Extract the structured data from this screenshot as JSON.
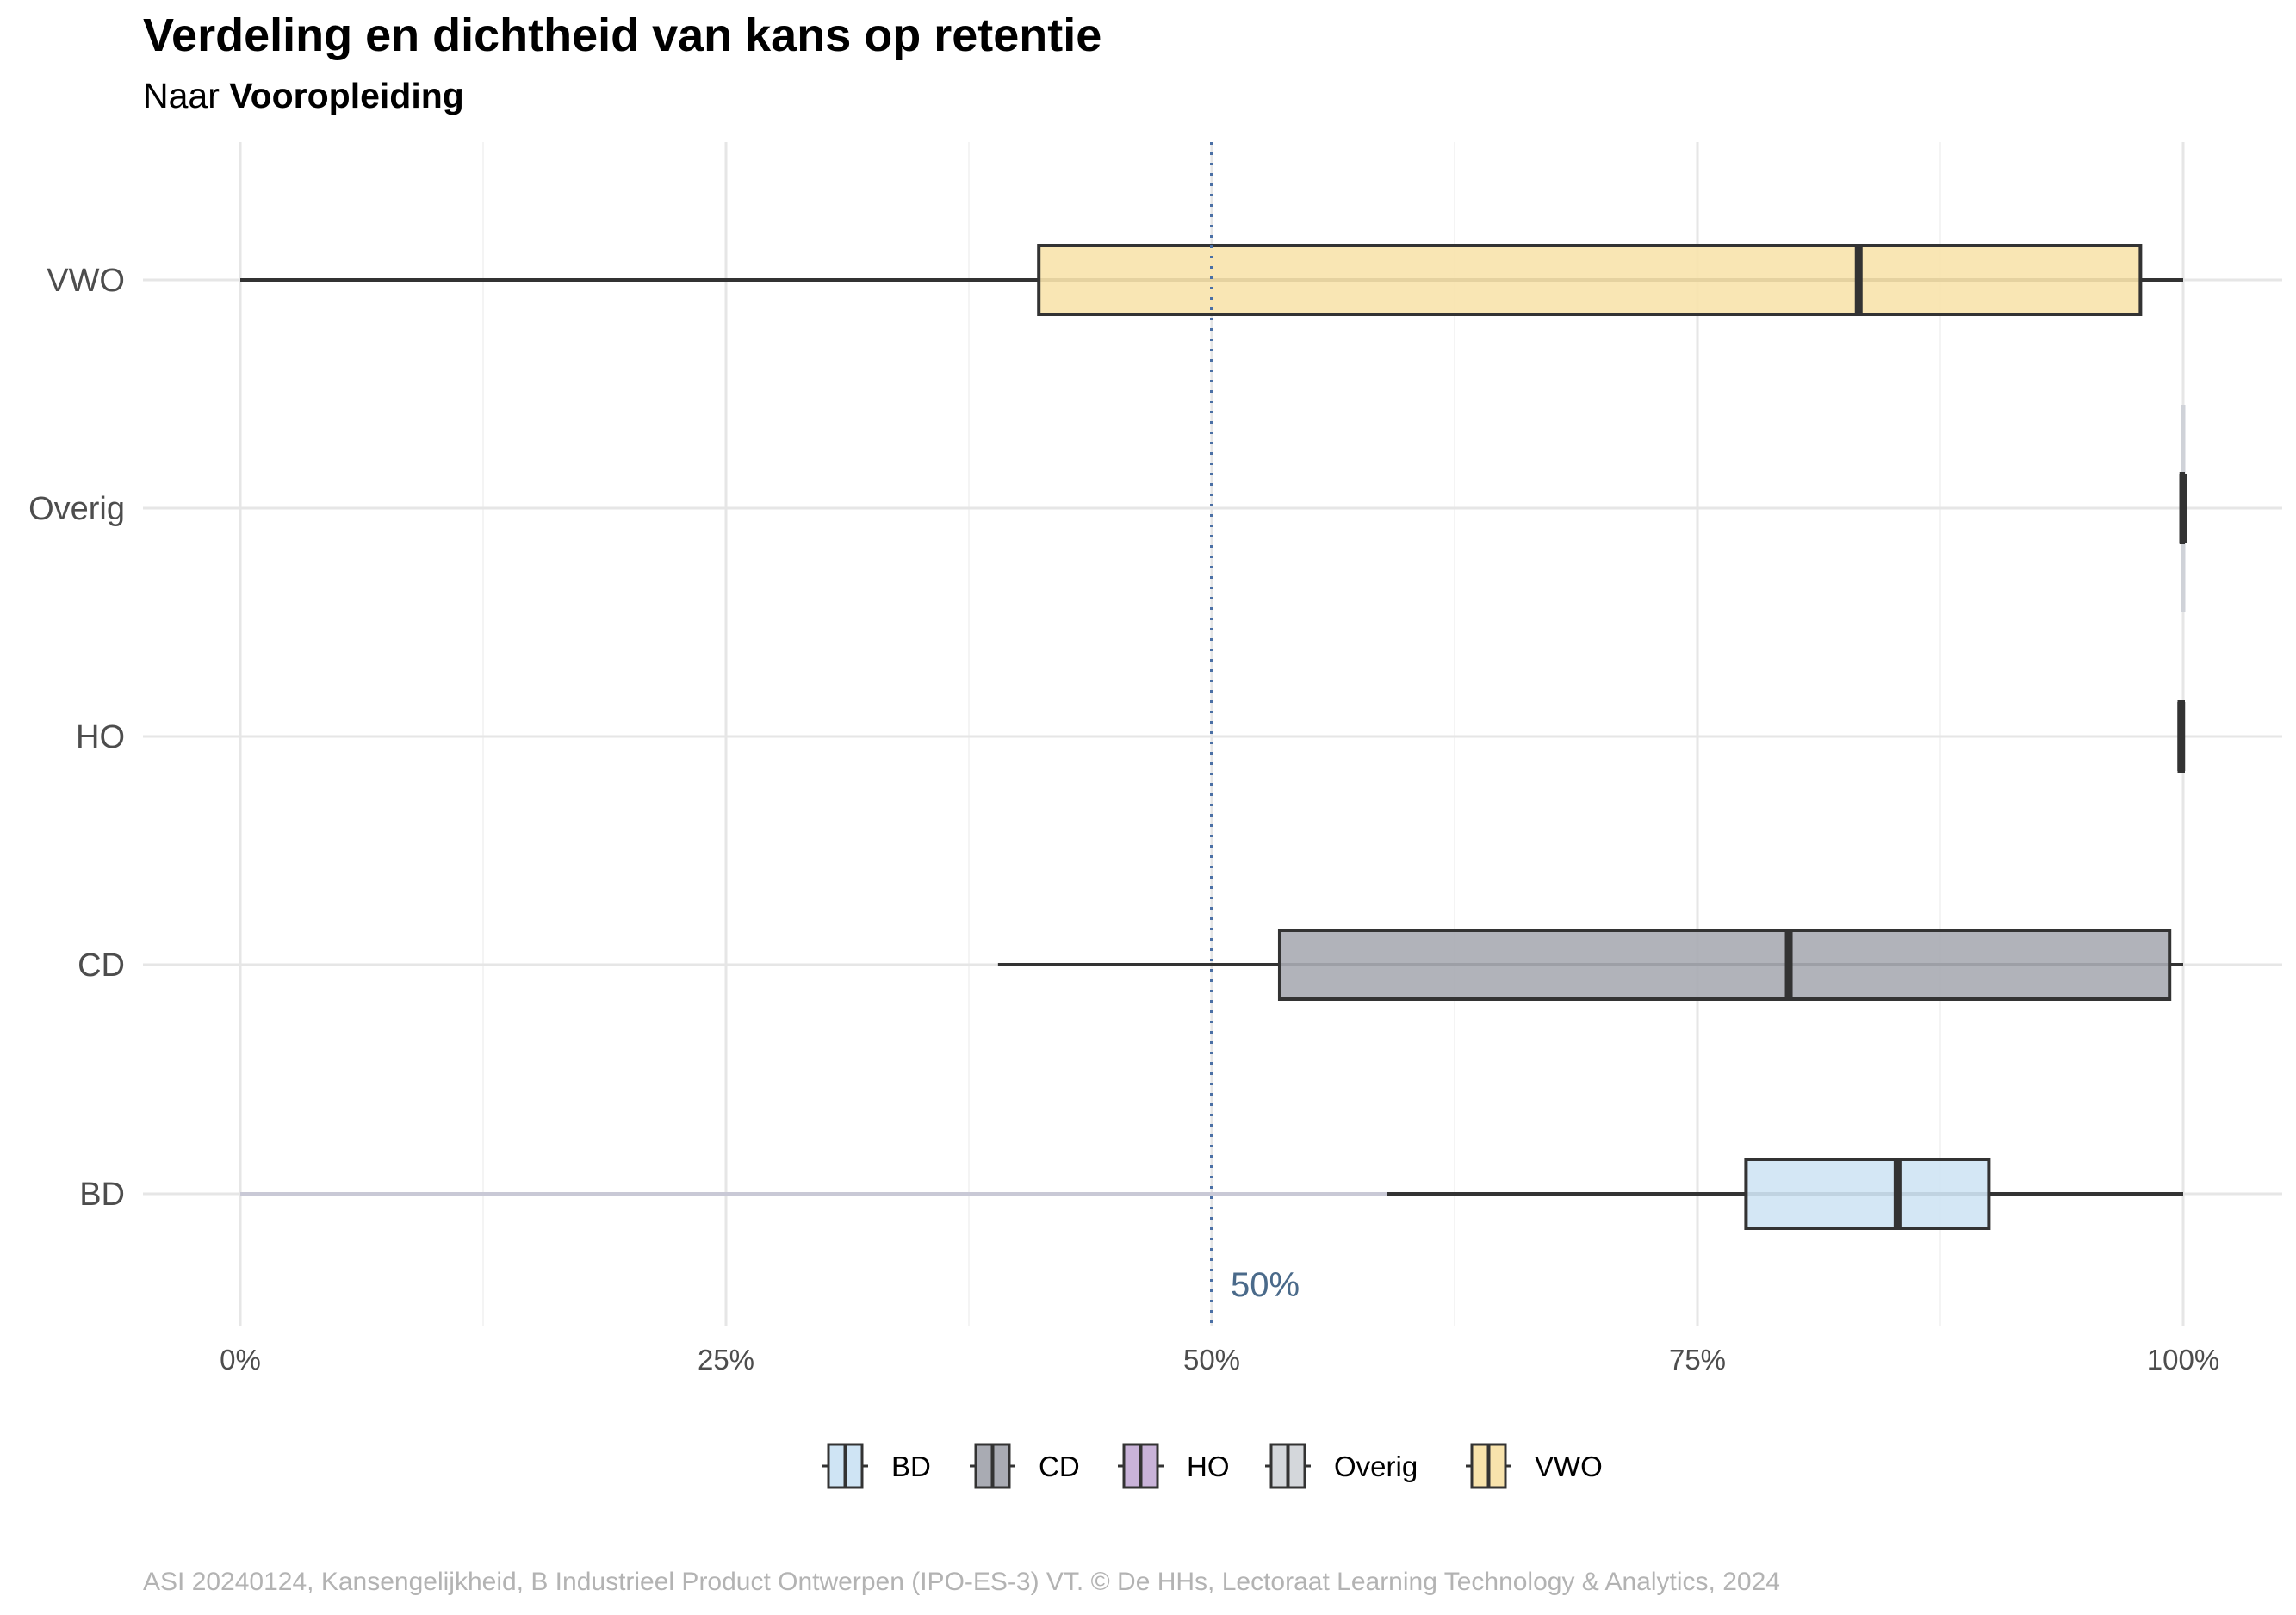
{
  "title": "Verdeling en dichtheid van kans op retentie",
  "subtitle": {
    "prefix": "Naar",
    "bold": "Vooropleiding"
  },
  "caption": "ASI 20240124, Kansengelijkheid, B Industrieel Product Ontwerpen (IPO-ES-3) VT. © De HHs, Lectoraat Learning Technology & Analytics, 2024",
  "chart_data": {
    "type": "boxplot",
    "orientation": "horizontal",
    "xlim": [
      0,
      1
    ],
    "x_ticks": [
      {
        "value": 0,
        "label": "0%"
      },
      {
        "value": 0.25,
        "label": "25%"
      },
      {
        "value": 0.5,
        "label": "50%"
      },
      {
        "value": 0.75,
        "label": "75%"
      },
      {
        "value": 1,
        "label": "100%"
      }
    ],
    "reference_line": {
      "value": 0.5,
      "label": "50%",
      "color": "#4a6fa5"
    },
    "grid": true,
    "legend_position": "bottom",
    "series": [
      {
        "name": "BD",
        "color": "#cfe4f4",
        "min": 0.59,
        "q1": 0.775,
        "median": 0.853,
        "q3": 0.9,
        "max": 1.0,
        "density_low": 0.0
      },
      {
        "name": "CD",
        "color": "#a9abb3",
        "min": 0.39,
        "q1": 0.535,
        "median": 0.797,
        "q3": 0.993,
        "max": 1.0
      },
      {
        "name": "HO",
        "color": "#c9b3d9",
        "min": 0.998,
        "q1": 0.998,
        "median": 0.999,
        "q3": 1.0,
        "max": 1.0
      },
      {
        "name": "Overig",
        "color": "#d4d7db",
        "min": 0.999,
        "q1": 0.999,
        "median": 1.0,
        "q3": 1.0,
        "max": 1.0
      },
      {
        "name": "VWO",
        "color": "#f8e3ac",
        "min": 0.0,
        "q1": 0.411,
        "median": 0.833,
        "q3": 0.978,
        "max": 1.0
      }
    ]
  }
}
